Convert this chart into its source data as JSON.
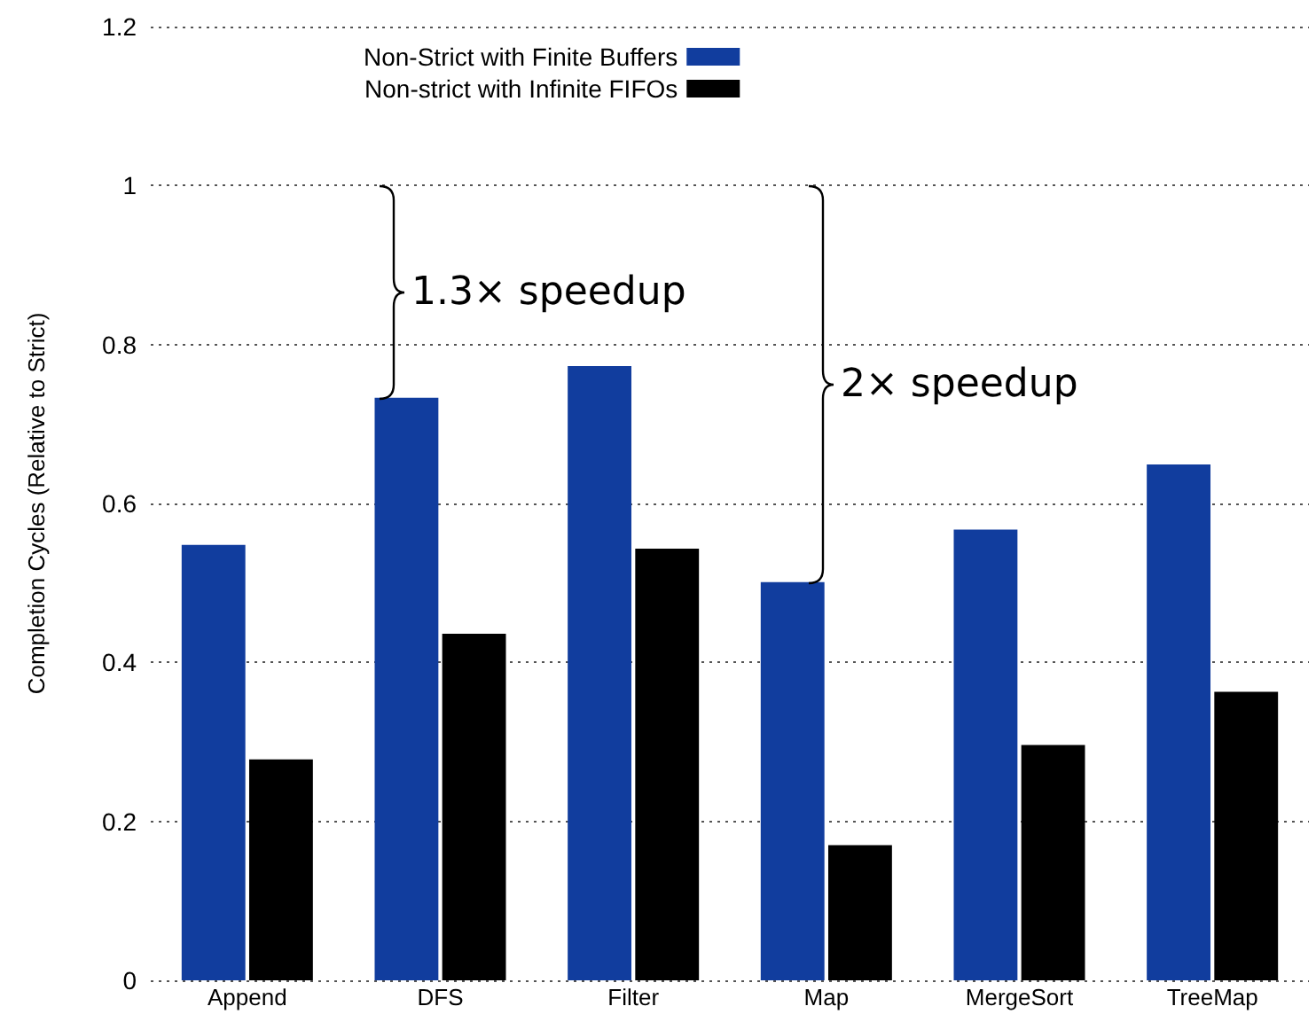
{
  "chart_data": {
    "type": "bar",
    "ylabel": "Completion Cycles (Relative to Strict)",
    "categories": [
      "Append",
      "DFS",
      "Filter",
      "Map",
      "MergeSort",
      "TreeMap"
    ],
    "series": [
      {
        "name": "Non-Strict with Finite Buffers",
        "color": "#113d9e",
        "values": [
          0.548,
          0.733,
          0.773,
          0.501,
          0.567,
          0.649
        ]
      },
      {
        "name": "Non-strict with Infinite FIFOs",
        "color": "#000000",
        "values": [
          0.278,
          0.436,
          0.543,
          0.17,
          0.296,
          0.363
        ]
      }
    ],
    "ylim": [
      0,
      1.2
    ],
    "yticks": [
      0,
      0.2,
      0.4,
      0.6,
      0.8,
      1,
      1.2
    ],
    "annotations": [
      "1.3× speedup",
      "2× speedup"
    ],
    "grid": "y",
    "legend": "top left"
  }
}
